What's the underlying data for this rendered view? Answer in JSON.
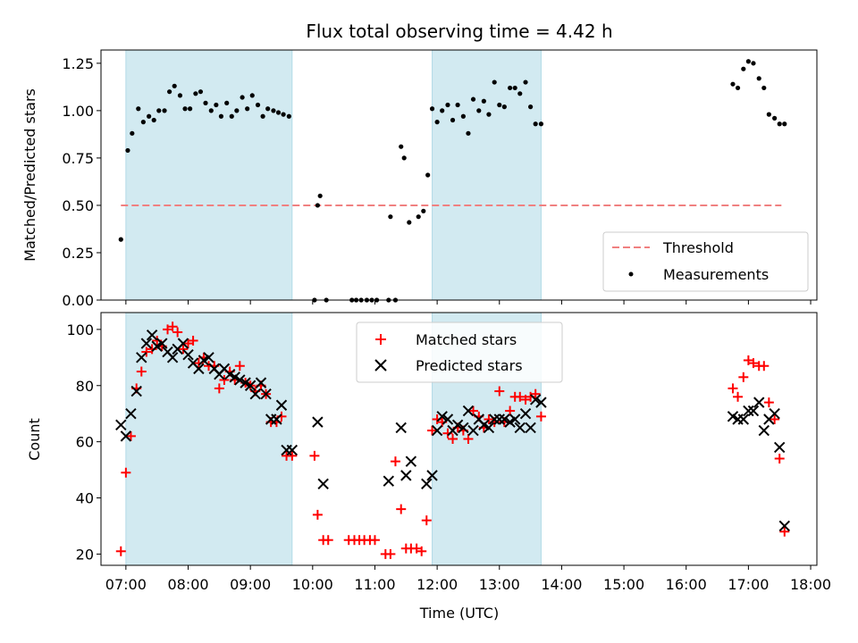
{
  "chart_data": [
    {
      "type": "scatter",
      "title": "Flux total observing time = 4.42 h",
      "xlabel": "",
      "ylabel": "Matched/Predicted stars",
      "ylim": [
        0,
        1.32
      ],
      "yticks": [
        "0.00",
        "0.25",
        "0.50",
        "0.75",
        "1.00",
        "1.25"
      ],
      "ytick_values": [
        0,
        0.25,
        0.5,
        0.75,
        1.0,
        1.25
      ],
      "xlim": [
        6.6,
        18.1
      ],
      "grid": false,
      "legend_position": "lower-right",
      "legend": [
        "Threshold",
        "Measurements"
      ],
      "shaded_spans": [
        [
          7.0,
          9.67
        ],
        [
          11.92,
          13.67
        ]
      ],
      "shade_color": "#add8e6",
      "threshold": {
        "name": "Threshold",
        "y": 0.5,
        "x_range": [
          6.92,
          17.53
        ],
        "color": "#f08080"
      },
      "series": [
        {
          "name": "Measurements",
          "color": "#000000",
          "x": [
            6.92,
            7.03,
            7.1,
            7.2,
            7.28,
            7.37,
            7.45,
            7.53,
            7.62,
            7.7,
            7.78,
            7.87,
            7.95,
            8.03,
            8.12,
            8.2,
            8.28,
            8.37,
            8.45,
            8.53,
            8.62,
            8.7,
            8.78,
            8.87,
            8.95,
            9.03,
            9.12,
            9.2,
            9.28,
            9.37,
            9.45,
            9.53,
            9.62,
            10.03,
            10.08,
            10.12,
            10.22,
            10.63,
            10.7,
            10.78,
            10.87,
            10.95,
            11.03,
            11.22,
            11.25,
            11.33,
            11.42,
            11.47,
            11.55,
            11.7,
            11.78,
            11.85,
            11.92,
            12.0,
            12.08,
            12.17,
            12.25,
            12.33,
            12.42,
            12.5,
            12.58,
            12.67,
            12.75,
            12.83,
            12.92,
            13.0,
            13.08,
            13.17,
            13.25,
            13.33,
            13.42,
            13.5,
            13.58,
            13.67,
            16.75,
            16.83,
            16.92,
            17.0,
            17.08,
            17.17,
            17.25,
            17.33,
            17.42,
            17.5,
            17.58
          ],
          "y": [
            0.32,
            0.79,
            0.88,
            1.01,
            0.94,
            0.97,
            0.95,
            1.0,
            1.0,
            1.1,
            1.13,
            1.08,
            1.01,
            1.01,
            1.09,
            1.1,
            1.04,
            1.0,
            1.03,
            0.97,
            1.04,
            0.97,
            1.0,
            1.07,
            1.01,
            1.08,
            1.03,
            0.97,
            1.01,
            1.0,
            0.99,
            0.98,
            0.97,
            0.0,
            0.5,
            0.55,
            0.0,
            0.0,
            0.0,
            0.0,
            0.0,
            0.0,
            0.0,
            0.0,
            0.44,
            0.0,
            0.81,
            0.75,
            0.41,
            0.44,
            0.47,
            0.66,
            1.01,
            0.94,
            1.0,
            1.03,
            0.95,
            1.03,
            0.97,
            0.88,
            1.06,
            1.0,
            1.05,
            0.98,
            1.15,
            1.03,
            1.02,
            1.12,
            1.12,
            1.09,
            1.15,
            1.02,
            0.93,
            0.93,
            1.14,
            1.12,
            1.22,
            1.26,
            1.25,
            1.17,
            1.12,
            0.98,
            0.96,
            0.93,
            0.93
          ]
        }
      ]
    },
    {
      "type": "scatter",
      "title": "",
      "xlabel": "Time (UTC)",
      "ylabel": "Count",
      "ylim": [
        16,
        106
      ],
      "yticks": [
        "20",
        "40",
        "60",
        "80",
        "100"
      ],
      "ytick_values": [
        20,
        40,
        60,
        80,
        100
      ],
      "xlim": [
        6.6,
        18.1
      ],
      "xticks": [
        "07:00",
        "08:00",
        "09:00",
        "10:00",
        "11:00",
        "12:00",
        "13:00",
        "14:00",
        "15:00",
        "16:00",
        "17:00",
        "18:00"
      ],
      "xtick_values": [
        7,
        8,
        9,
        10,
        11,
        12,
        13,
        14,
        15,
        16,
        17,
        18
      ],
      "grid": false,
      "legend_position": "upper-center",
      "legend": [
        "Matched stars",
        "Predicted stars"
      ],
      "shaded_spans": [
        [
          7.0,
          9.67
        ],
        [
          11.92,
          13.67
        ]
      ],
      "shade_color": "#add8e6",
      "series": [
        {
          "name": "Matched stars",
          "marker": "plus",
          "color": "#ff0000",
          "x": [
            6.92,
            7.0,
            7.08,
            7.17,
            7.25,
            7.33,
            7.42,
            7.5,
            7.58,
            7.67,
            7.75,
            7.83,
            7.92,
            8.0,
            8.08,
            8.17,
            8.25,
            8.33,
            8.42,
            8.5,
            8.58,
            8.67,
            8.75,
            8.83,
            8.92,
            9.0,
            9.08,
            9.17,
            9.25,
            9.33,
            9.42,
            9.5,
            9.58,
            9.67,
            10.03,
            10.08,
            10.17,
            10.25,
            10.58,
            10.67,
            10.75,
            10.83,
            10.92,
            11.0,
            11.17,
            11.25,
            11.33,
            11.42,
            11.5,
            11.58,
            11.67,
            11.75,
            11.83,
            11.92,
            12.0,
            12.08,
            12.17,
            12.25,
            12.33,
            12.42,
            12.5,
            12.58,
            12.67,
            12.75,
            12.83,
            12.92,
            13.0,
            13.08,
            13.17,
            13.25,
            13.33,
            13.42,
            13.5,
            13.58,
            13.67,
            16.75,
            16.83,
            16.92,
            17.0,
            17.08,
            17.17,
            17.25,
            17.33,
            17.42,
            17.5,
            17.58
          ],
          "y": [
            21,
            49,
            62,
            79,
            85,
            92,
            93,
            96,
            94,
            100,
            101,
            99,
            93,
            95,
            96,
            88,
            90,
            87,
            87,
            79,
            82,
            85,
            82,
            87,
            81,
            80,
            78,
            80,
            77,
            67,
            67,
            69,
            55,
            55,
            55,
            34,
            25,
            25,
            25,
            25,
            25,
            25,
            25,
            25,
            20,
            20,
            53,
            36,
            22,
            22,
            22,
            21,
            32,
            64,
            68,
            67,
            63,
            61,
            65,
            64,
            61,
            71,
            69,
            65,
            68,
            67,
            78,
            67,
            71,
            76,
            76,
            75,
            76,
            77,
            69,
            79,
            76,
            83,
            89,
            88,
            87,
            87,
            74,
            68,
            54,
            28
          ]
        },
        {
          "name": "Predicted stars",
          "marker": "x",
          "color": "#000000",
          "x": [
            6.92,
            7.0,
            7.08,
            7.17,
            7.25,
            7.33,
            7.42,
            7.5,
            7.58,
            7.67,
            7.75,
            7.83,
            7.92,
            8.0,
            8.08,
            8.17,
            8.25,
            8.33,
            8.42,
            8.5,
            8.58,
            8.67,
            8.75,
            8.83,
            8.92,
            9.0,
            9.08,
            9.17,
            9.25,
            9.33,
            9.42,
            9.5,
            9.58,
            9.67,
            10.08,
            10.17,
            11.22,
            11.42,
            11.5,
            11.58,
            11.83,
            11.92,
            12.0,
            12.08,
            12.17,
            12.25,
            12.33,
            12.42,
            12.5,
            12.58,
            12.67,
            12.75,
            12.83,
            12.92,
            13.0,
            13.08,
            13.17,
            13.25,
            13.33,
            13.42,
            13.5,
            13.58,
            13.67,
            16.75,
            16.83,
            16.92,
            17.0,
            17.08,
            17.17,
            17.25,
            17.33,
            17.42,
            17.5,
            17.58
          ],
          "y": [
            66,
            62,
            70,
            78,
            90,
            95,
            98,
            94,
            95,
            92,
            90,
            93,
            95,
            91,
            88,
            86,
            89,
            90,
            86,
            84,
            86,
            84,
            83,
            82,
            81,
            80,
            77,
            81,
            77,
            68,
            68,
            73,
            57,
            57,
            67,
            45,
            46,
            65,
            48,
            53,
            45,
            48,
            64,
            69,
            68,
            64,
            66,
            65,
            71,
            64,
            68,
            66,
            65,
            68,
            68,
            68,
            67,
            68,
            65,
            70,
            65,
            75,
            74,
            69,
            68,
            68,
            71,
            71,
            74,
            64,
            68,
            70,
            58,
            30
          ]
        }
      ]
    }
  ]
}
